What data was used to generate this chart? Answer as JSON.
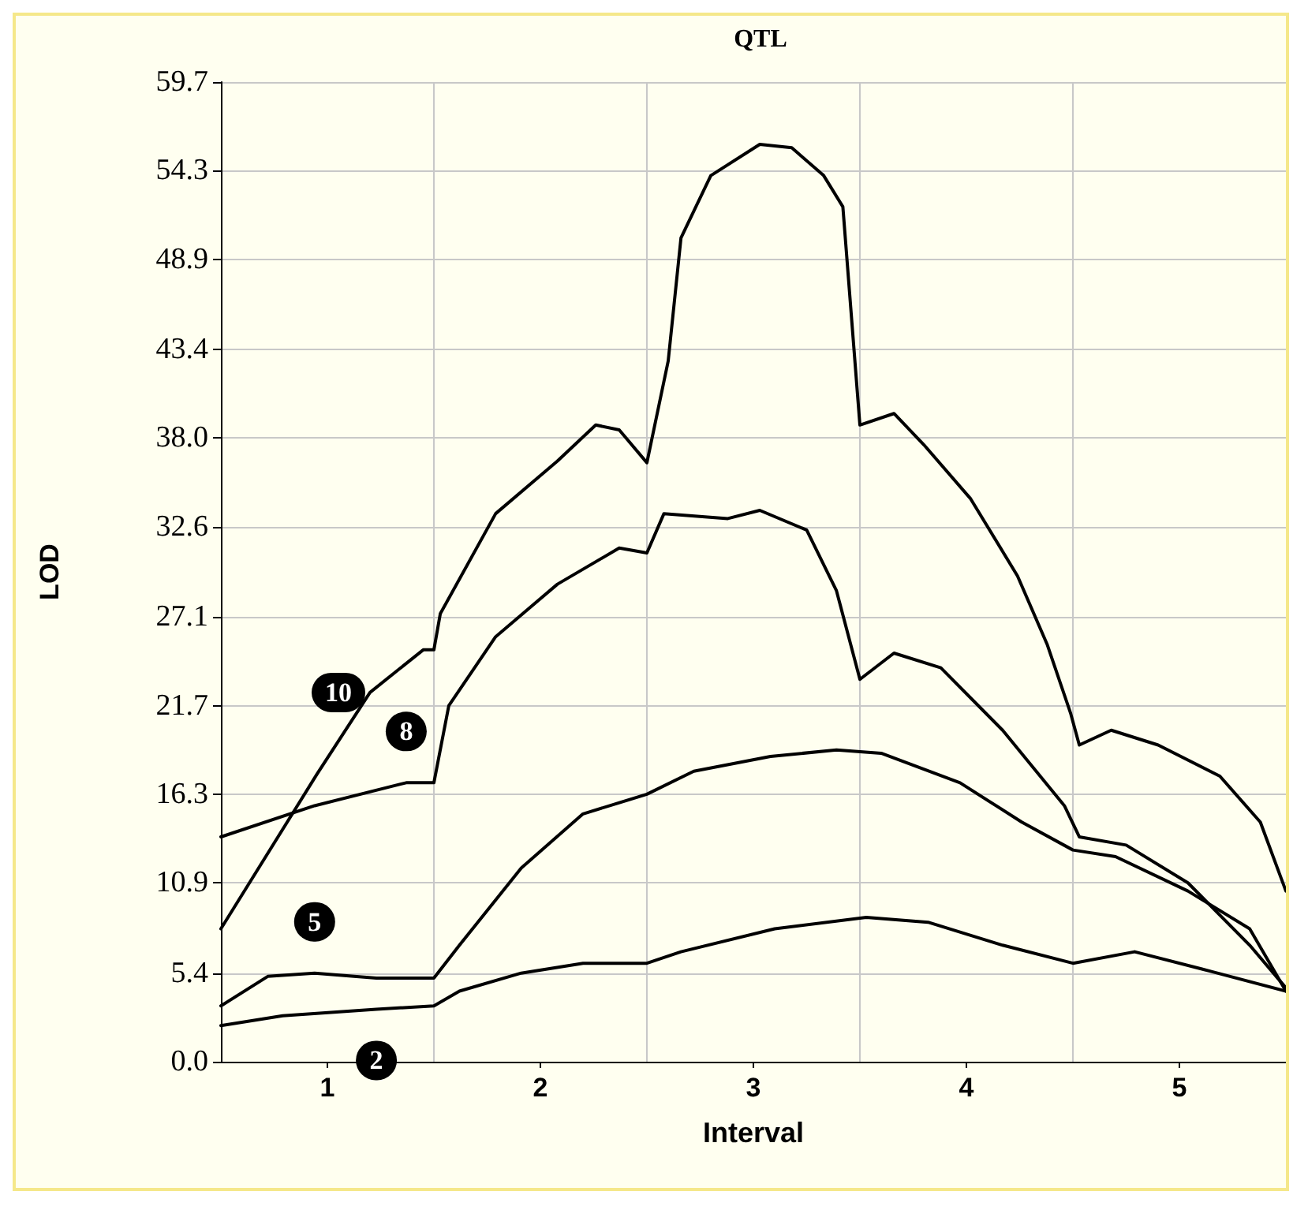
{
  "chart_data": {
    "type": "line",
    "title": "QTL",
    "xlabel": "Interval",
    "ylabel": "LOD",
    "xlim": [
      0.5,
      5.5
    ],
    "xticks": [
      1,
      2,
      3,
      4,
      5
    ],
    "ylim": [
      0,
      59.7
    ],
    "yticks": [
      {
        "value": 0,
        "label": "0.0"
      },
      5.4,
      10.9,
      16.3,
      21.7,
      27.1,
      32.6,
      {
        "value": 38,
        "label": "38.0"
      },
      43.4,
      48.9,
      54.3,
      59.7
    ],
    "grid": "y",
    "legend": false,
    "marker": "none",
    "line_style": "solid",
    "ref_lines": [
      {
        "axis": "x",
        "value": 1.5,
        "color": "#c8c8c8"
      },
      {
        "axis": "x",
        "value": 2.5,
        "color": "#c8c8c8"
      },
      {
        "axis": "x",
        "value": 3.5,
        "color": "#c8c8c8"
      },
      {
        "axis": "x",
        "value": 4.5,
        "color": "#c8c8c8"
      }
    ],
    "series": [
      {
        "name": "10",
        "color": "#000000",
        "x": [
          0.5,
          0.95,
          1.2,
          1.45,
          1.5,
          1.53,
          1.79,
          2.08,
          2.26,
          2.37,
          2.5,
          2.6,
          2.66,
          2.8,
          3.03,
          3.18,
          3.33,
          3.42,
          3.5,
          3.66,
          3.8,
          4.02,
          4.24,
          4.38,
          4.49,
          4.53,
          4.68,
          4.9,
          5.19,
          5.38,
          5.5
        ],
        "values": [
          8.1,
          17.5,
          22.5,
          25.1,
          25.1,
          27.3,
          33.4,
          36.6,
          38.8,
          38.5,
          36.5,
          42.7,
          50.2,
          54,
          55.9,
          55.7,
          54,
          52.1,
          38.8,
          39.5,
          37.6,
          34.3,
          29.6,
          25.4,
          21.2,
          19.3,
          20.2,
          19.3,
          17.4,
          14.6,
          10.4
        ]
      },
      {
        "name": "8",
        "color": "#000000",
        "x": [
          0.5,
          0.94,
          1.37,
          1.5,
          1.57,
          1.79,
          2.08,
          2.37,
          2.5,
          2.58,
          2.88,
          3.03,
          3.25,
          3.39,
          3.5,
          3.66,
          3.88,
          4.17,
          4.46,
          4.53,
          4.75,
          5.04,
          5.33,
          5.5
        ],
        "values": [
          13.7,
          15.6,
          17,
          17,
          21.7,
          25.9,
          29.1,
          31.3,
          31,
          33.4,
          33.1,
          33.6,
          32.4,
          28.7,
          23.3,
          24.9,
          24,
          20.2,
          15.6,
          13.7,
          13.2,
          10.9,
          7.1,
          4.5
        ]
      },
      {
        "name": "5",
        "color": "#000000",
        "x": [
          0.5,
          0.72,
          0.94,
          1.23,
          1.5,
          1.62,
          1.91,
          2.2,
          2.5,
          2.72,
          3.08,
          3.39,
          3.6,
          3.97,
          4.26,
          4.5,
          4.7,
          5.04,
          5.33,
          5.5
        ],
        "values": [
          3.4,
          5.2,
          5.4,
          5.1,
          5.1,
          7.1,
          11.8,
          15.1,
          16.3,
          17.7,
          18.6,
          19,
          18.8,
          17,
          14.6,
          12.9,
          12.5,
          10.4,
          8.1,
          4.3
        ]
      },
      {
        "name": "2",
        "color": "#000000",
        "x": [
          0.5,
          0.79,
          1.23,
          1.5,
          1.62,
          1.91,
          2.2,
          2.5,
          2.66,
          3.1,
          3.53,
          3.82,
          4.17,
          4.5,
          4.79,
          5.15,
          5.5
        ],
        "values": [
          2.2,
          2.8,
          3.2,
          3.4,
          4.3,
          5.4,
          6,
          6,
          6.7,
          8.1,
          8.8,
          8.5,
          7.1,
          6,
          6.7,
          5.5,
          4.3
        ]
      }
    ]
  }
}
